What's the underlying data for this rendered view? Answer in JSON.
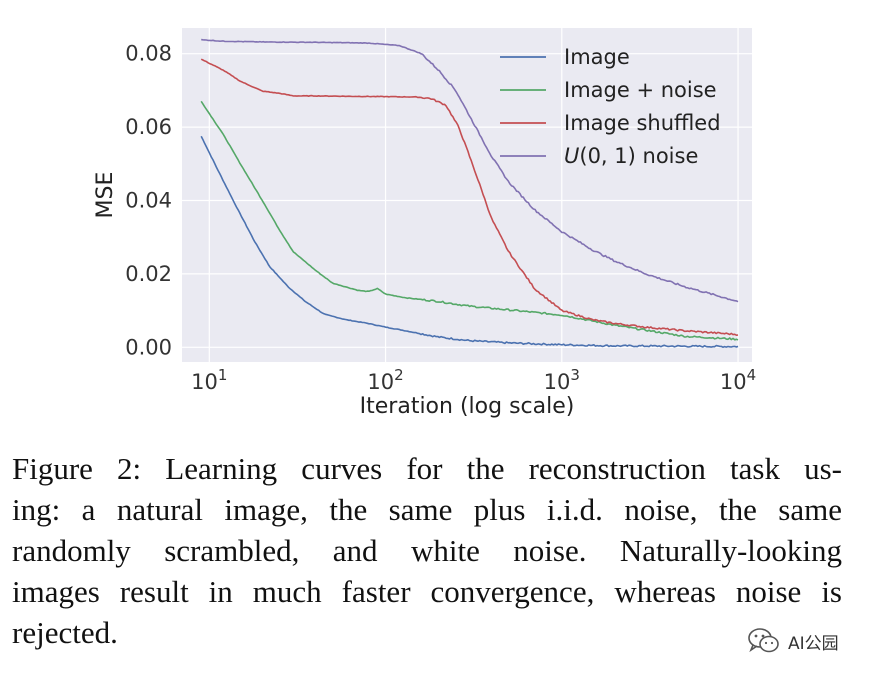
{
  "chart_data": {
    "type": "line",
    "x_scale": "log",
    "xlabel": "Iteration (log scale)",
    "ylabel": "MSE",
    "xlim": [
      7,
      12000
    ],
    "ylim": [
      -0.004,
      0.087
    ],
    "grid": true,
    "background": "#eaeaf2",
    "x_ticks": [
      {
        "value": 10,
        "base": "10",
        "exp": "1"
      },
      {
        "value": 100,
        "base": "10",
        "exp": "2"
      },
      {
        "value": 1000,
        "base": "10",
        "exp": "3"
      },
      {
        "value": 10000,
        "base": "10",
        "exp": "4"
      }
    ],
    "y_ticks": [
      {
        "value": 0.0,
        "label": "0.00"
      },
      {
        "value": 0.02,
        "label": "0.02"
      },
      {
        "value": 0.04,
        "label": "0.04"
      },
      {
        "value": 0.06,
        "label": "0.06"
      },
      {
        "value": 0.08,
        "label": "0.08"
      }
    ],
    "legend_position": "top-right",
    "series": [
      {
        "name": "Image",
        "color": "#4c72b0",
        "x": [
          9,
          11,
          14,
          18,
          22,
          28,
          35,
          45,
          60,
          80,
          100,
          130,
          200,
          300,
          500,
          1000,
          2000,
          5000,
          10000
        ],
        "y": [
          0.0575,
          0.049,
          0.039,
          0.029,
          0.022,
          0.0165,
          0.0125,
          0.009,
          0.0075,
          0.0065,
          0.0055,
          0.0045,
          0.0028,
          0.0018,
          0.0012,
          0.0007,
          0.0004,
          0.0003,
          0.0002
        ]
      },
      {
        "name": "Image + noise",
        "color": "#55a868",
        "x": [
          9,
          12,
          15,
          20,
          25,
          30,
          40,
          50,
          70,
          80,
          90,
          100,
          130,
          200,
          300,
          500,
          1000,
          2000,
          5000,
          10000
        ],
        "y": [
          0.067,
          0.058,
          0.05,
          0.04,
          0.032,
          0.026,
          0.021,
          0.0175,
          0.0155,
          0.0152,
          0.016,
          0.0145,
          0.0135,
          0.0125,
          0.0112,
          0.0102,
          0.0088,
          0.006,
          0.003,
          0.0022
        ]
      },
      {
        "name": "Image shuffled",
        "color": "#c44e52",
        "x": [
          9,
          12,
          15,
          20,
          25,
          30,
          40,
          60,
          100,
          150,
          180,
          220,
          260,
          300,
          350,
          400,
          500,
          700,
          1000,
          1500,
          2000,
          3000,
          5000,
          10000
        ],
        "y": [
          0.0785,
          0.0755,
          0.0725,
          0.0698,
          0.0692,
          0.0685,
          0.0685,
          0.0684,
          0.0683,
          0.0682,
          0.0678,
          0.066,
          0.06,
          0.052,
          0.043,
          0.035,
          0.026,
          0.016,
          0.01,
          0.0075,
          0.0065,
          0.0055,
          0.0045,
          0.0035
        ]
      },
      {
        "name": "U(0,1) noise",
        "color": "#8172b2",
        "x": [
          9,
          12,
          20,
          40,
          80,
          120,
          160,
          200,
          250,
          300,
          400,
          500,
          700,
          1000,
          1500,
          2000,
          3000,
          5000,
          10000
        ],
        "y": [
          0.0838,
          0.0834,
          0.0832,
          0.0831,
          0.0829,
          0.0822,
          0.08,
          0.0755,
          0.07,
          0.063,
          0.052,
          0.045,
          0.0375,
          0.0315,
          0.0265,
          0.0235,
          0.02,
          0.0165,
          0.0125
        ]
      }
    ]
  },
  "caption": {
    "lines": [
      "Figure 2: Learning curves for the reconstruction task us-",
      "ing: a natural image, the same plus i.i.d. noise, the same",
      "randomly scrambled, and white noise.  Naturally-looking",
      "images result in much faster convergence, whereas noise is",
      "rejected."
    ]
  },
  "watermark": {
    "text": "AI公园",
    "icon": "wechat-icon"
  }
}
